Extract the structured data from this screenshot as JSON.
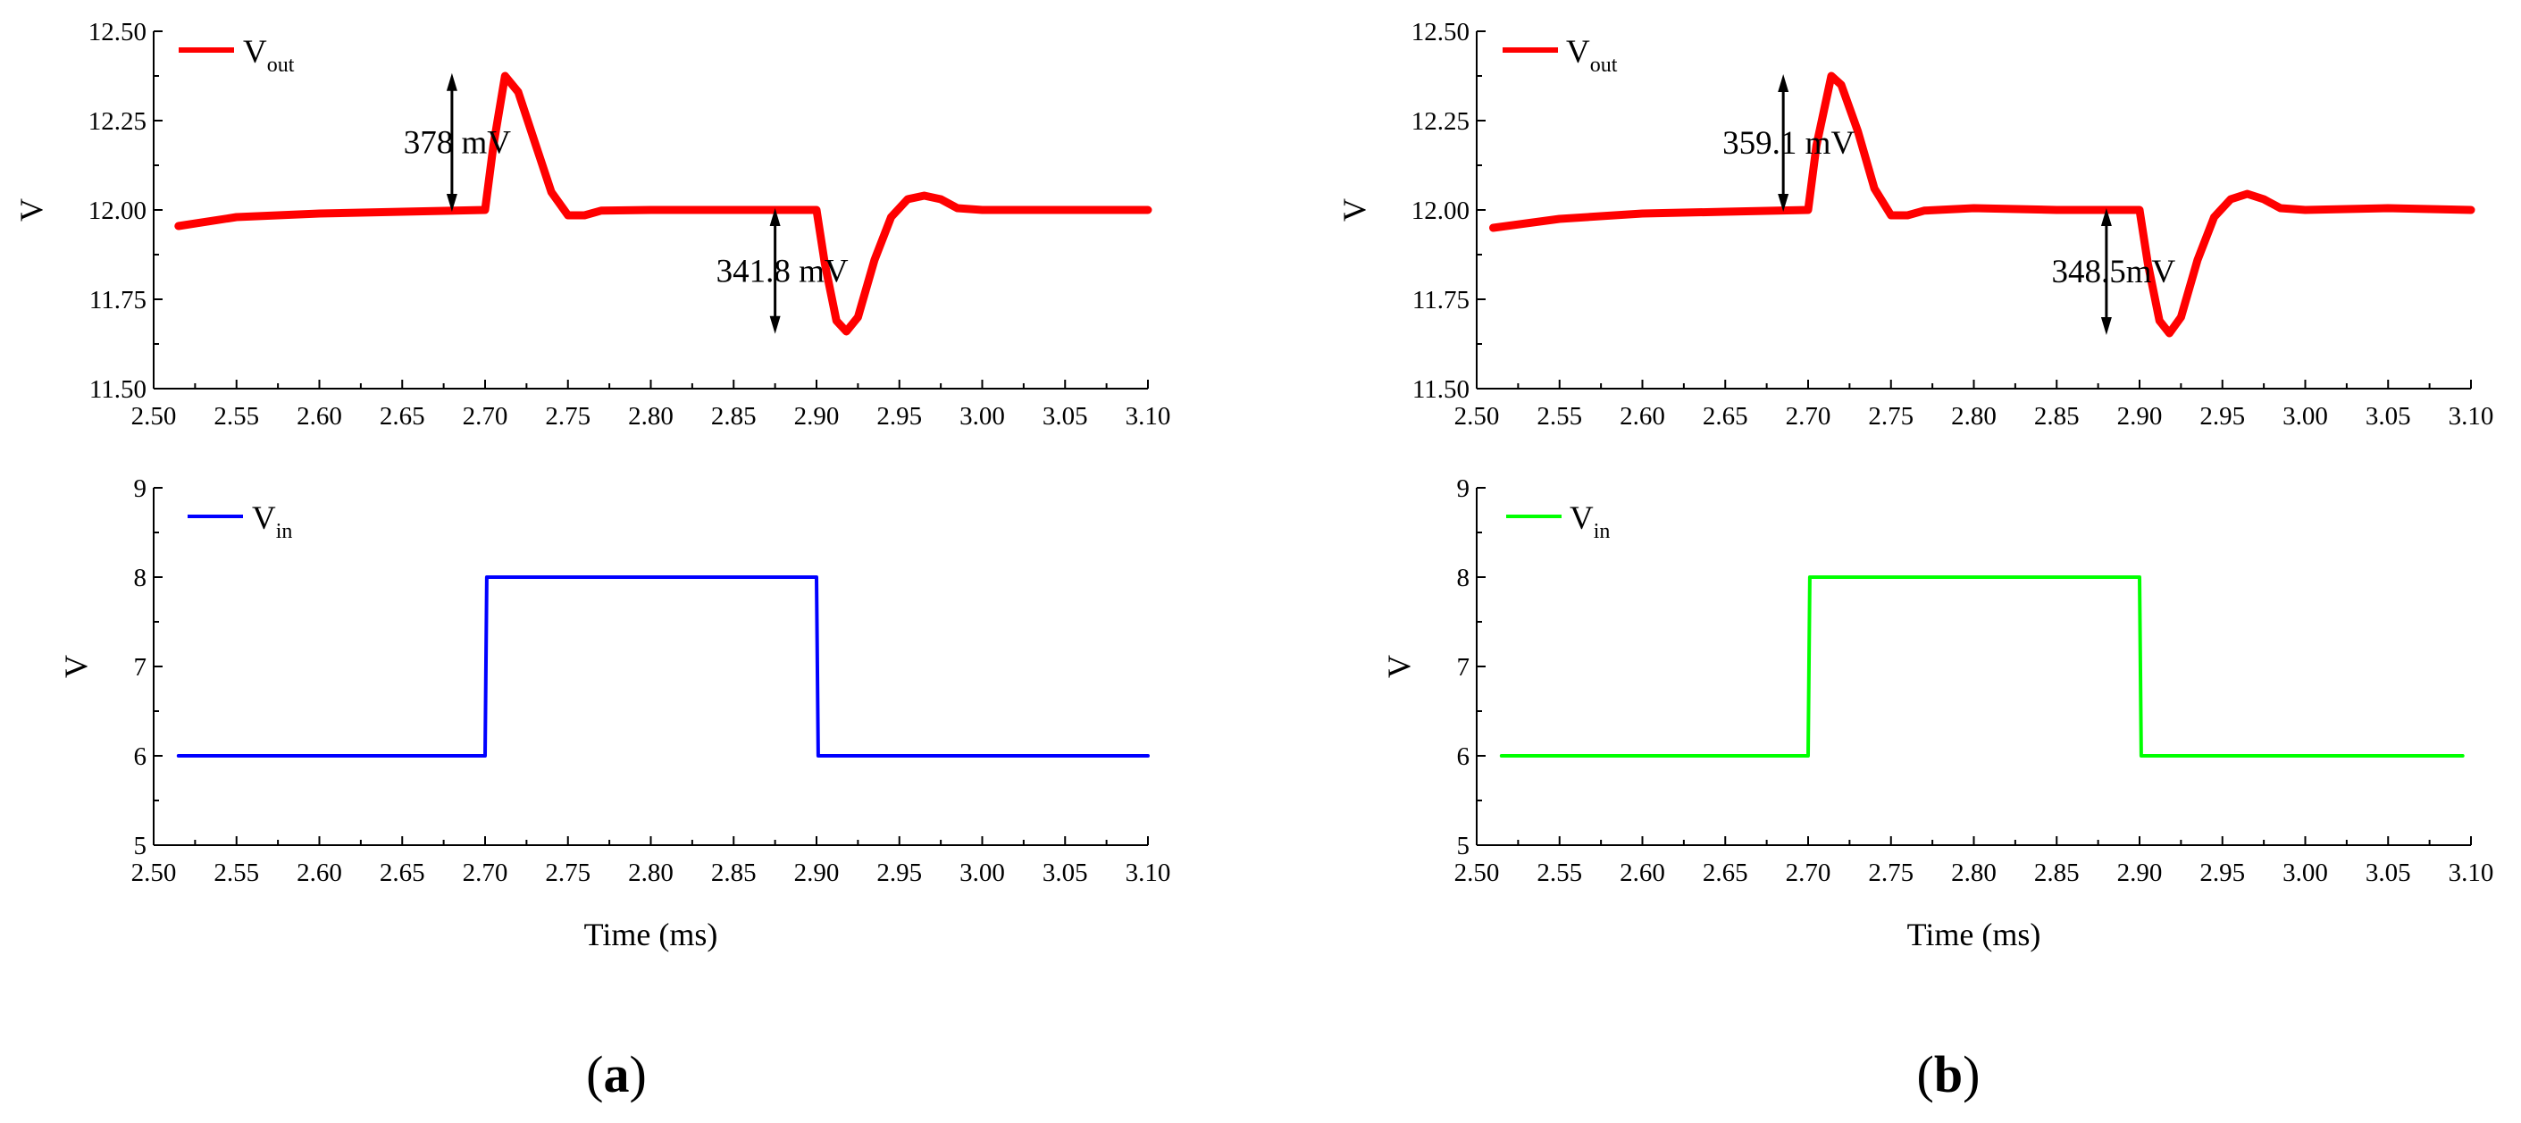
{
  "chart_data": [
    {
      "type": "line",
      "panel": "a",
      "xlabel": "",
      "ylabel": "V",
      "xlim": [
        2.5,
        3.1
      ],
      "ylim": [
        11.5,
        12.5
      ],
      "xticks": [
        "2.50",
        "2.55",
        "2.60",
        "2.65",
        "2.70",
        "2.75",
        "2.80",
        "2.85",
        "2.90",
        "2.95",
        "3.00",
        "3.05",
        "3.10"
      ],
      "yticks": [
        "11.50",
        "11.75",
        "12.00",
        "12.25",
        "12.50"
      ],
      "legend": {
        "main": "V",
        "sub": "out"
      },
      "color": "#ff0000",
      "series": [
        {
          "name": "Vout",
          "x": [
            2.515,
            2.55,
            2.6,
            2.65,
            2.7,
            2.705,
            2.712,
            2.72,
            2.73,
            2.74,
            2.75,
            2.76,
            2.77,
            2.8,
            2.85,
            2.9,
            2.905,
            2.912,
            2.918,
            2.925,
            2.935,
            2.945,
            2.955,
            2.965,
            2.975,
            2.985,
            3.0,
            3.05,
            3.1
          ],
          "y": [
            11.955,
            11.98,
            11.99,
            11.995,
            12.0,
            12.18,
            12.375,
            12.33,
            12.19,
            12.05,
            11.985,
            11.985,
            11.998,
            12.0,
            12.0,
            12.0,
            11.85,
            11.69,
            11.66,
            11.7,
            11.86,
            11.98,
            12.03,
            12.04,
            12.03,
            12.005,
            12.0,
            12.0,
            12.0
          ]
        }
      ],
      "annotations": [
        {
          "text": "378 mV",
          "x": 2.68,
          "y_from": 12.0,
          "y_to": 12.378
        },
        {
          "text": "341.8 mV",
          "x": 2.875,
          "y_from": 12.0,
          "y_to": 11.658
        }
      ]
    },
    {
      "type": "line",
      "panel": "a",
      "xlabel": "Time (ms)",
      "ylabel": "V",
      "xlim": [
        2.5,
        3.1
      ],
      "ylim": [
        5,
        9
      ],
      "xticks": [
        "2.50",
        "2.55",
        "2.60",
        "2.65",
        "2.70",
        "2.75",
        "2.80",
        "2.85",
        "2.90",
        "2.95",
        "3.00",
        "3.05",
        "3.10"
      ],
      "yticks": [
        "5",
        "6",
        "7",
        "8",
        "9"
      ],
      "legend": {
        "main": "V",
        "sub": "in"
      },
      "color": "#0000ff",
      "series": [
        {
          "name": "Vin",
          "x": [
            2.515,
            2.7,
            2.701,
            2.9,
            2.901,
            3.1
          ],
          "y": [
            6,
            6,
            8,
            8,
            6,
            6
          ]
        }
      ],
      "annotations": []
    },
    {
      "type": "line",
      "panel": "b",
      "xlabel": "",
      "ylabel": "V",
      "xlim": [
        2.5,
        3.1
      ],
      "ylim": [
        11.5,
        12.5
      ],
      "xticks": [
        "2.50",
        "2.55",
        "2.60",
        "2.65",
        "2.70",
        "2.75",
        "2.80",
        "2.85",
        "2.90",
        "2.95",
        "3.00",
        "3.05",
        "3.10"
      ],
      "yticks": [
        "11.50",
        "11.75",
        "12.00",
        "12.25",
        "12.50"
      ],
      "legend": {
        "main": "V",
        "sub": "out"
      },
      "color": "#ff0000",
      "series": [
        {
          "name": "Vout",
          "x": [
            2.51,
            2.55,
            2.6,
            2.65,
            2.7,
            2.705,
            2.714,
            2.72,
            2.73,
            2.74,
            2.75,
            2.76,
            2.77,
            2.8,
            2.85,
            2.9,
            2.905,
            2.912,
            2.918,
            2.925,
            2.935,
            2.945,
            2.955,
            2.965,
            2.975,
            2.985,
            3.0,
            3.05,
            3.1
          ],
          "y": [
            11.95,
            11.975,
            11.99,
            11.995,
            12.0,
            12.18,
            12.375,
            12.35,
            12.22,
            12.06,
            11.985,
            11.985,
            11.998,
            12.005,
            12.0,
            12.0,
            11.85,
            11.69,
            11.655,
            11.7,
            11.86,
            11.98,
            12.03,
            12.045,
            12.03,
            12.005,
            12.0,
            12.005,
            12.0
          ]
        }
      ],
      "annotations": [
        {
          "text": "359.1 mV",
          "x": 2.685,
          "y_from": 12.0,
          "y_to": 12.375
        },
        {
          "text": "348.5mV",
          "x": 2.88,
          "y_from": 12.0,
          "y_to": 11.655
        }
      ]
    },
    {
      "type": "line",
      "panel": "b",
      "xlabel": "Time (ms)",
      "ylabel": "V",
      "xlim": [
        2.5,
        3.1
      ],
      "ylim": [
        5,
        9
      ],
      "xticks": [
        "2.50",
        "2.55",
        "2.60",
        "2.65",
        "2.70",
        "2.75",
        "2.80",
        "2.85",
        "2.90",
        "2.95",
        "3.00",
        "3.05",
        "3.10"
      ],
      "yticks": [
        "5",
        "6",
        "7",
        "8",
        "9"
      ],
      "legend": {
        "main": "V",
        "sub": "in"
      },
      "color": "#00ff00",
      "series": [
        {
          "name": "Vin",
          "x": [
            2.515,
            2.7,
            2.701,
            2.9,
            2.901,
            3.095
          ],
          "y": [
            6,
            6,
            8,
            8,
            6,
            6
          ]
        }
      ],
      "annotations": []
    }
  ],
  "panel_labels": {
    "a": "a",
    "b": "b"
  }
}
